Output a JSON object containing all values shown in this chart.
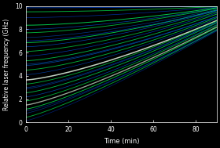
{
  "background_color": "#000000",
  "xlim": [
    0,
    90
  ],
  "ylim": [
    0,
    10
  ],
  "xlabel": "Time (min)",
  "ylabel": "Relative laser frequency (GHz)",
  "xticks": [
    0,
    20,
    40,
    60,
    80
  ],
  "yticks": [
    0,
    2,
    4,
    6,
    8,
    10
  ],
  "tick_color": "#ffffff",
  "label_color": "#ffffff",
  "figsize": [
    2.8,
    1.89
  ],
  "dpi": 100,
  "curves": [
    {
      "y0": 9.85,
      "drift": 0.12,
      "exp": 1.8,
      "color": "#0055ff",
      "lw": 0.55,
      "alpha": 0.75
    },
    {
      "y0": 9.5,
      "drift": 0.45,
      "exp": 1.7,
      "color": "#00cc44",
      "lw": 0.65,
      "alpha": 0.85
    },
    {
      "y0": 9.0,
      "drift": 0.9,
      "exp": 1.6,
      "color": "#0044dd",
      "lw": 0.5,
      "alpha": 0.7
    },
    {
      "y0": 8.35,
      "drift": 1.5,
      "exp": 1.6,
      "color": "#00dd55",
      "lw": 0.7,
      "alpha": 0.9
    },
    {
      "y0": 8.0,
      "drift": 1.8,
      "exp": 1.55,
      "color": "#0066ff",
      "lw": 0.5,
      "alpha": 0.65
    },
    {
      "y0": 7.7,
      "drift": 2.1,
      "exp": 1.5,
      "color": "#00cc44",
      "lw": 0.65,
      "alpha": 0.85
    },
    {
      "y0": 7.3,
      "drift": 2.4,
      "exp": 1.5,
      "color": "#0055cc",
      "lw": 0.5,
      "alpha": 0.65
    },
    {
      "y0": 6.85,
      "drift": 2.8,
      "exp": 1.5,
      "color": "#00ee55",
      "lw": 0.65,
      "alpha": 0.85
    },
    {
      "y0": 6.5,
      "drift": 3.1,
      "exp": 1.45,
      "color": "#0066ff",
      "lw": 0.5,
      "alpha": 0.65
    },
    {
      "y0": 6.1,
      "drift": 3.4,
      "exp": 1.45,
      "color": "#00cc44",
      "lw": 0.65,
      "alpha": 0.8
    },
    {
      "y0": 5.7,
      "drift": 3.7,
      "exp": 1.4,
      "color": "#0055ff",
      "lw": 0.5,
      "alpha": 0.65
    },
    {
      "y0": 5.3,
      "drift": 4.0,
      "exp": 1.4,
      "color": "#00dd55",
      "lw": 0.65,
      "alpha": 0.8
    },
    {
      "y0": 4.9,
      "drift": 4.2,
      "exp": 1.4,
      "color": "#0077ff",
      "lw": 0.5,
      "alpha": 0.65
    },
    {
      "y0": 4.5,
      "drift": 4.5,
      "exp": 1.38,
      "color": "#00cc44",
      "lw": 0.65,
      "alpha": 0.85
    },
    {
      "y0": 4.1,
      "drift": 4.8,
      "exp": 1.35,
      "color": "#0055dd",
      "lw": 0.5,
      "alpha": 0.65
    },
    {
      "y0": 3.65,
      "drift": 5.1,
      "exp": 1.35,
      "color": "#ccddcc",
      "lw": 1.1,
      "alpha": 0.95
    },
    {
      "y0": 3.3,
      "drift": 5.4,
      "exp": 1.32,
      "color": "#00cc44",
      "lw": 0.65,
      "alpha": 0.8
    },
    {
      "y0": 2.9,
      "drift": 5.7,
      "exp": 1.3,
      "color": "#0055cc",
      "lw": 0.5,
      "alpha": 0.65
    },
    {
      "y0": 2.55,
      "drift": 6.0,
      "exp": 1.28,
      "color": "#00dd55",
      "lw": 0.65,
      "alpha": 0.8
    },
    {
      "y0": 2.2,
      "drift": 6.2,
      "exp": 1.27,
      "color": "#0066ff",
      "lw": 0.5,
      "alpha": 0.65
    },
    {
      "y0": 1.85,
      "drift": 6.5,
      "exp": 1.25,
      "color": "#00cc44",
      "lw": 0.65,
      "alpha": 0.8
    },
    {
      "y0": 1.5,
      "drift": 6.7,
      "exp": 1.23,
      "color": "#aabbaa",
      "lw": 0.95,
      "alpha": 0.9
    },
    {
      "y0": 1.15,
      "drift": 7.0,
      "exp": 1.22,
      "color": "#00ee55",
      "lw": 0.65,
      "alpha": 0.8
    },
    {
      "y0": 0.8,
      "drift": 7.2,
      "exp": 1.2,
      "color": "#0044bb",
      "lw": 0.5,
      "alpha": 0.65
    },
    {
      "y0": 0.45,
      "drift": 7.5,
      "exp": 1.18,
      "color": "#00cc44",
      "lw": 0.65,
      "alpha": 0.8
    },
    {
      "y0": 0.15,
      "drift": 7.7,
      "exp": 1.17,
      "color": "#0033bb",
      "lw": 0.5,
      "alpha": 0.6
    },
    {
      "y0": 7.0,
      "drift": 2.6,
      "exp": 1.48,
      "color": "#0044ff",
      "lw": 0.5,
      "alpha": 0.65
    },
    {
      "y0": 5.0,
      "drift": 4.1,
      "exp": 1.4,
      "color": "#0066ee",
      "lw": 0.5,
      "alpha": 0.6
    },
    {
      "y0": 3.0,
      "drift": 5.6,
      "exp": 1.3,
      "color": "#0055dd",
      "lw": 0.5,
      "alpha": 0.6
    },
    {
      "y0": 1.0,
      "drift": 6.9,
      "exp": 1.22,
      "color": "#0044cc",
      "lw": 0.5,
      "alpha": 0.6
    }
  ]
}
